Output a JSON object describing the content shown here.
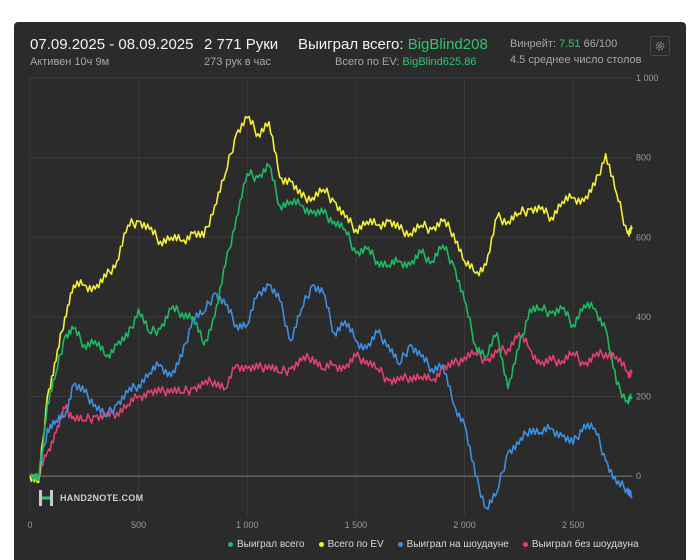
{
  "header": {
    "date_range": "07.09.2025 - 08.09.2025",
    "active": "Активен 10ч 9м",
    "hands": "2 771 Руки",
    "hands_per_hour": "273 рук в час",
    "won_label": "Выиграл всего:",
    "won_value": "BigBlind208",
    "ev_label": "Всего по EV:",
    "ev_value": "BigBlind625.86",
    "winrate_label": "Винрейт:",
    "winrate_value": "7.51",
    "winrate_tail": "66/100",
    "tables": "4.5 среднее число столов"
  },
  "logo": {
    "text": "HAND2NOTE.COM"
  },
  "colors": {
    "won": "#1eb963",
    "ev": "#f4f03a",
    "showdown": "#3f8fe0",
    "nonshowdown": "#e0416e",
    "background": "#2b2b2b"
  },
  "chart_data": {
    "type": "line",
    "xlim": [
      0,
      2771
    ],
    "ylim": [
      -100,
      1000
    ],
    "x_ticks": [
      0,
      500,
      1000,
      1500,
      2000,
      2500
    ],
    "x_tick_labels": [
      "0",
      "500",
      "1 000",
      "1 500",
      "2 000",
      "2 500"
    ],
    "y_ticks": [
      0,
      200,
      400,
      600,
      800,
      1000
    ],
    "y_tick_labels": [
      "0",
      "200",
      "400",
      "600",
      "800",
      "1 000"
    ],
    "x": [
      0,
      40,
      80,
      120,
      160,
      200,
      250,
      300,
      350,
      400,
      450,
      500,
      550,
      600,
      650,
      700,
      750,
      800,
      850,
      900,
      950,
      1000,
      1050,
      1100,
      1150,
      1200,
      1250,
      1300,
      1350,
      1400,
      1450,
      1500,
      1550,
      1600,
      1650,
      1700,
      1750,
      1800,
      1850,
      1900,
      1950,
      2000,
      2050,
      2100,
      2150,
      2200,
      2250,
      2300,
      2350,
      2400,
      2450,
      2500,
      2550,
      2600,
      2650,
      2700,
      2750,
      2771
    ],
    "series": [
      {
        "name": "Выиграл всего",
        "key": "won",
        "values": [
          0,
          -10,
          180,
          260,
          350,
          370,
          330,
          340,
          300,
          330,
          350,
          420,
          360,
          370,
          420,
          410,
          400,
          330,
          400,
          530,
          650,
          760,
          750,
          780,
          680,
          690,
          680,
          660,
          660,
          640,
          620,
          560,
          570,
          540,
          530,
          540,
          530,
          560,
          540,
          580,
          530,
          440,
          330,
          300,
          360,
          220,
          320,
          420,
          420,
          410,
          420,
          380,
          430,
          420,
          370,
          230,
          190,
          200
        ]
      },
      {
        "name": "Всего по EV",
        "key": "ev",
        "values": [
          0,
          -15,
          200,
          290,
          400,
          480,
          480,
          470,
          500,
          540,
          630,
          640,
          620,
          590,
          600,
          590,
          610,
          600,
          680,
          760,
          860,
          900,
          860,
          890,
          750,
          740,
          700,
          700,
          720,
          690,
          650,
          620,
          640,
          630,
          640,
          620,
          610,
          630,
          620,
          640,
          610,
          540,
          510,
          530,
          650,
          640,
          660,
          670,
          670,
          650,
          690,
          700,
          690,
          730,
          810,
          710,
          610,
          620
        ]
      },
      {
        "name": "Выиграл на шоудауне",
        "key": "showdown",
        "values": [
          0,
          -5,
          120,
          140,
          150,
          230,
          210,
          180,
          150,
          180,
          210,
          230,
          260,
          280,
          250,
          300,
          400,
          410,
          460,
          430,
          380,
          380,
          460,
          480,
          440,
          340,
          420,
          480,
          460,
          360,
          390,
          340,
          320,
          360,
          330,
          280,
          330,
          300,
          270,
          280,
          180,
          130,
          0,
          -80,
          -40,
          60,
          80,
          120,
          110,
          120,
          100,
          80,
          130,
          120,
          40,
          -20,
          -30,
          -50
        ]
      },
      {
        "name": "Выиграл без шоудауна",
        "key": "nonshowdown",
        "values": [
          0,
          0,
          60,
          110,
          170,
          150,
          140,
          150,
          150,
          160,
          180,
          200,
          210,
          210,
          220,
          210,
          220,
          230,
          240,
          220,
          280,
          270,
          270,
          280,
          260,
          270,
          290,
          300,
          270,
          280,
          270,
          300,
          290,
          270,
          240,
          240,
          250,
          250,
          240,
          270,
          280,
          300,
          310,
          290,
          310,
          320,
          360,
          320,
          280,
          290,
          290,
          310,
          280,
          300,
          310,
          300,
          260,
          260
        ]
      }
    ]
  }
}
